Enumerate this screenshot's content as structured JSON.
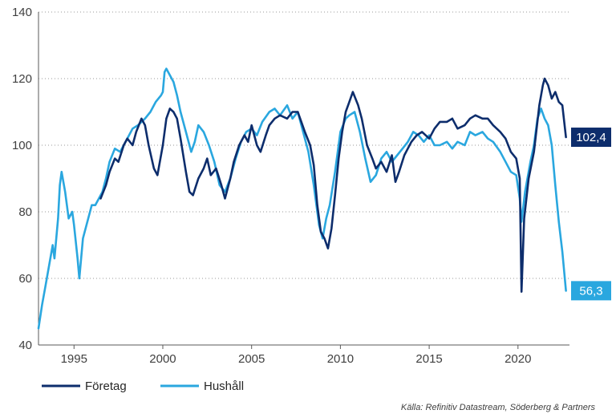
{
  "chart_data": {
    "type": "line",
    "title": "",
    "xlabel": "",
    "ylabel": "",
    "xlim": [
      1993.0,
      2022.9
    ],
    "ylim": [
      40,
      140
    ],
    "grid": true,
    "legend_position": "bottom-left",
    "x_tick_labels": [
      "1995",
      "2000",
      "2005",
      "2010",
      "2015",
      "2020"
    ],
    "x_ticks": [
      1995,
      2000,
      2005,
      2010,
      2015,
      2020
    ],
    "y_tick_labels": [
      "40",
      "60",
      "80",
      "100",
      "120",
      "140"
    ],
    "y_ticks": [
      40,
      60,
      80,
      100,
      120,
      140
    ],
    "source": "Källa: Refinitiv Datastream, Söderberg & Partners",
    "series": [
      {
        "name": "Företag",
        "color": "#0d2d6c",
        "end_label": "102,4",
        "points": [
          [
            1996.5,
            84
          ],
          [
            1996.8,
            88
          ],
          [
            1997.0,
            92
          ],
          [
            1997.3,
            96
          ],
          [
            1997.5,
            95
          ],
          [
            1997.8,
            100
          ],
          [
            1998.0,
            102
          ],
          [
            1998.3,
            100
          ],
          [
            1998.5,
            104
          ],
          [
            1998.8,
            108
          ],
          [
            1999.0,
            106
          ],
          [
            1999.2,
            100
          ],
          [
            1999.5,
            93
          ],
          [
            1999.7,
            91
          ],
          [
            2000.0,
            100
          ],
          [
            2000.2,
            108
          ],
          [
            2000.4,
            111
          ],
          [
            2000.6,
            110
          ],
          [
            2000.8,
            108
          ],
          [
            2001.0,
            102
          ],
          [
            2001.3,
            92
          ],
          [
            2001.5,
            86
          ],
          [
            2001.7,
            85
          ],
          [
            2002.0,
            90
          ],
          [
            2002.3,
            93
          ],
          [
            2002.5,
            96
          ],
          [
            2002.7,
            91
          ],
          [
            2003.0,
            93
          ],
          [
            2003.3,
            88
          ],
          [
            2003.5,
            84
          ],
          [
            2003.8,
            90
          ],
          [
            2004.0,
            95
          ],
          [
            2004.3,
            100
          ],
          [
            2004.6,
            103
          ],
          [
            2004.8,
            101
          ],
          [
            2005.0,
            106
          ],
          [
            2005.3,
            100
          ],
          [
            2005.5,
            98
          ],
          [
            2005.8,
            103
          ],
          [
            2006.0,
            106
          ],
          [
            2006.3,
            108
          ],
          [
            2006.6,
            109
          ],
          [
            2007.0,
            108
          ],
          [
            2007.3,
            110
          ],
          [
            2007.6,
            110
          ],
          [
            2007.8,
            107
          ],
          [
            2008.0,
            104
          ],
          [
            2008.3,
            100
          ],
          [
            2008.5,
            94
          ],
          [
            2008.7,
            82
          ],
          [
            2008.9,
            74
          ],
          [
            2009.1,
            72
          ],
          [
            2009.3,
            69
          ],
          [
            2009.5,
            75
          ],
          [
            2009.7,
            85
          ],
          [
            2009.9,
            96
          ],
          [
            2010.1,
            104
          ],
          [
            2010.3,
            110
          ],
          [
            2010.5,
            113
          ],
          [
            2010.7,
            116
          ],
          [
            2011.0,
            112
          ],
          [
            2011.2,
            108
          ],
          [
            2011.5,
            100
          ],
          [
            2011.8,
            96
          ],
          [
            2012.0,
            93
          ],
          [
            2012.3,
            95
          ],
          [
            2012.6,
            92
          ],
          [
            2012.9,
            97
          ],
          [
            2013.1,
            89
          ],
          [
            2013.3,
            92
          ],
          [
            2013.6,
            97
          ],
          [
            2014.0,
            101
          ],
          [
            2014.3,
            103
          ],
          [
            2014.6,
            104
          ],
          [
            2015.0,
            102
          ],
          [
            2015.3,
            105
          ],
          [
            2015.6,
            107
          ],
          [
            2016.0,
            107
          ],
          [
            2016.3,
            108
          ],
          [
            2016.6,
            105
          ],
          [
            2017.0,
            106
          ],
          [
            2017.3,
            108
          ],
          [
            2017.6,
            109
          ],
          [
            2018.0,
            108
          ],
          [
            2018.3,
            108
          ],
          [
            2018.6,
            106
          ],
          [
            2019.0,
            104
          ],
          [
            2019.3,
            102
          ],
          [
            2019.6,
            98
          ],
          [
            2019.9,
            96
          ],
          [
            2020.1,
            90
          ],
          [
            2020.2,
            56
          ],
          [
            2020.35,
            78
          ],
          [
            2020.6,
            90
          ],
          [
            2020.9,
            98
          ],
          [
            2021.2,
            112
          ],
          [
            2021.4,
            118
          ],
          [
            2021.5,
            120
          ],
          [
            2021.7,
            118
          ],
          [
            2021.9,
            114
          ],
          [
            2022.1,
            116
          ],
          [
            2022.3,
            113
          ],
          [
            2022.5,
            112
          ],
          [
            2022.7,
            102.4
          ]
        ]
      },
      {
        "name": "Hushåll",
        "color": "#2aa7df",
        "end_label": "56,3",
        "points": [
          [
            1993.0,
            45
          ],
          [
            1993.2,
            52
          ],
          [
            1993.4,
            58
          ],
          [
            1993.6,
            64
          ],
          [
            1993.8,
            70
          ],
          [
            1993.9,
            66
          ],
          [
            1994.1,
            78
          ],
          [
            1994.2,
            88
          ],
          [
            1994.3,
            92
          ],
          [
            1994.5,
            86
          ],
          [
            1994.7,
            78
          ],
          [
            1994.9,
            80
          ],
          [
            1995.0,
            76
          ],
          [
            1995.2,
            66
          ],
          [
            1995.3,
            60
          ],
          [
            1995.5,
            72
          ],
          [
            1995.8,
            78
          ],
          [
            1996.0,
            82
          ],
          [
            1996.2,
            82
          ],
          [
            1996.4,
            84
          ],
          [
            1996.6,
            86
          ],
          [
            1996.8,
            90
          ],
          [
            1997.0,
            95
          ],
          [
            1997.3,
            99
          ],
          [
            1997.6,
            98
          ],
          [
            1998.0,
            102
          ],
          [
            1998.3,
            105
          ],
          [
            1998.6,
            106
          ],
          [
            1999.0,
            108
          ],
          [
            1999.3,
            110
          ],
          [
            1999.6,
            113
          ],
          [
            1999.9,
            115
          ],
          [
            2000.0,
            116
          ],
          [
            2000.1,
            122
          ],
          [
            2000.2,
            123
          ],
          [
            2000.4,
            121
          ],
          [
            2000.6,
            119
          ],
          [
            2000.8,
            115
          ],
          [
            2001.0,
            110
          ],
          [
            2001.3,
            104
          ],
          [
            2001.6,
            98
          ],
          [
            2001.8,
            101
          ],
          [
            2002.0,
            106
          ],
          [
            2002.3,
            104
          ],
          [
            2002.6,
            100
          ],
          [
            2002.9,
            95
          ],
          [
            2003.2,
            88
          ],
          [
            2003.5,
            86
          ],
          [
            2003.8,
            90
          ],
          [
            2004.1,
            96
          ],
          [
            2004.4,
            101
          ],
          [
            2004.7,
            104
          ],
          [
            2005.0,
            105
          ],
          [
            2005.3,
            103
          ],
          [
            2005.6,
            107
          ],
          [
            2006.0,
            110
          ],
          [
            2006.3,
            111
          ],
          [
            2006.6,
            109
          ],
          [
            2007.0,
            112
          ],
          [
            2007.3,
            108
          ],
          [
            2007.6,
            110
          ],
          [
            2007.9,
            104
          ],
          [
            2008.2,
            98
          ],
          [
            2008.5,
            88
          ],
          [
            2008.8,
            76
          ],
          [
            2009.0,
            72
          ],
          [
            2009.2,
            78
          ],
          [
            2009.4,
            82
          ],
          [
            2009.7,
            92
          ],
          [
            2010.0,
            104
          ],
          [
            2010.3,
            108
          ],
          [
            2010.5,
            109
          ],
          [
            2010.8,
            110
          ],
          [
            2011.1,
            104
          ],
          [
            2011.4,
            96
          ],
          [
            2011.7,
            89
          ],
          [
            2012.0,
            91
          ],
          [
            2012.3,
            96
          ],
          [
            2012.6,
            98
          ],
          [
            2012.9,
            95
          ],
          [
            2013.2,
            97
          ],
          [
            2013.5,
            99
          ],
          [
            2013.8,
            101
          ],
          [
            2014.1,
            104
          ],
          [
            2014.4,
            103
          ],
          [
            2014.7,
            101
          ],
          [
            2015.0,
            103
          ],
          [
            2015.3,
            100
          ],
          [
            2015.6,
            100
          ],
          [
            2016.0,
            101
          ],
          [
            2016.3,
            99
          ],
          [
            2016.6,
            101
          ],
          [
            2017.0,
            100
          ],
          [
            2017.3,
            104
          ],
          [
            2017.6,
            103
          ],
          [
            2018.0,
            104
          ],
          [
            2018.3,
            102
          ],
          [
            2018.6,
            101
          ],
          [
            2019.0,
            98
          ],
          [
            2019.3,
            95
          ],
          [
            2019.6,
            92
          ],
          [
            2019.9,
            91
          ],
          [
            2020.1,
            84
          ],
          [
            2020.2,
            77
          ],
          [
            2020.4,
            86
          ],
          [
            2020.7,
            95
          ],
          [
            2020.9,
            100
          ],
          [
            2021.1,
            108
          ],
          [
            2021.3,
            111
          ],
          [
            2021.5,
            108
          ],
          [
            2021.7,
            106
          ],
          [
            2021.9,
            100
          ],
          [
            2022.1,
            88
          ],
          [
            2022.3,
            77
          ],
          [
            2022.5,
            68
          ],
          [
            2022.7,
            56.3
          ]
        ]
      }
    ]
  }
}
